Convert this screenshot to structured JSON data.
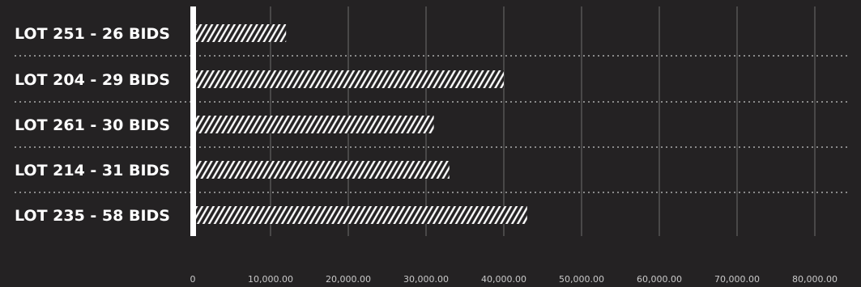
{
  "chart_data": {
    "type": "bar",
    "orientation": "horizontal",
    "title": "",
    "xlabel": "",
    "ylabel": "",
    "categories": [
      "LOT 251 - 26 BIDS",
      "LOT 204 - 29 BIDS",
      "LOT 261 - 30 BIDS",
      "LOT 214 - 31 BIDS",
      "LOT 235 - 58 BIDS"
    ],
    "values": [
      12000,
      40000,
      31000,
      33000,
      43000
    ],
    "xlim": [
      0,
      80000
    ],
    "tick_values": [
      0,
      10000,
      20000,
      30000,
      40000,
      50000,
      60000,
      70000,
      80000
    ],
    "tick_labels": [
      "0",
      "10,000.00",
      "20,000.00",
      "30,000.00",
      "40,000.00",
      "50,000.00",
      "60,000.00",
      "70,000.00",
      "80,000.00"
    ],
    "bar_fill": "diagonal-hatch",
    "grid": true,
    "legend": "none",
    "colors": {
      "background": "#242223",
      "bar": "#ffffff",
      "grid": "#6e6e6e",
      "separator": "#8a8a8a",
      "text": "#ffffff",
      "tick_text": "#c9c9c9"
    }
  }
}
